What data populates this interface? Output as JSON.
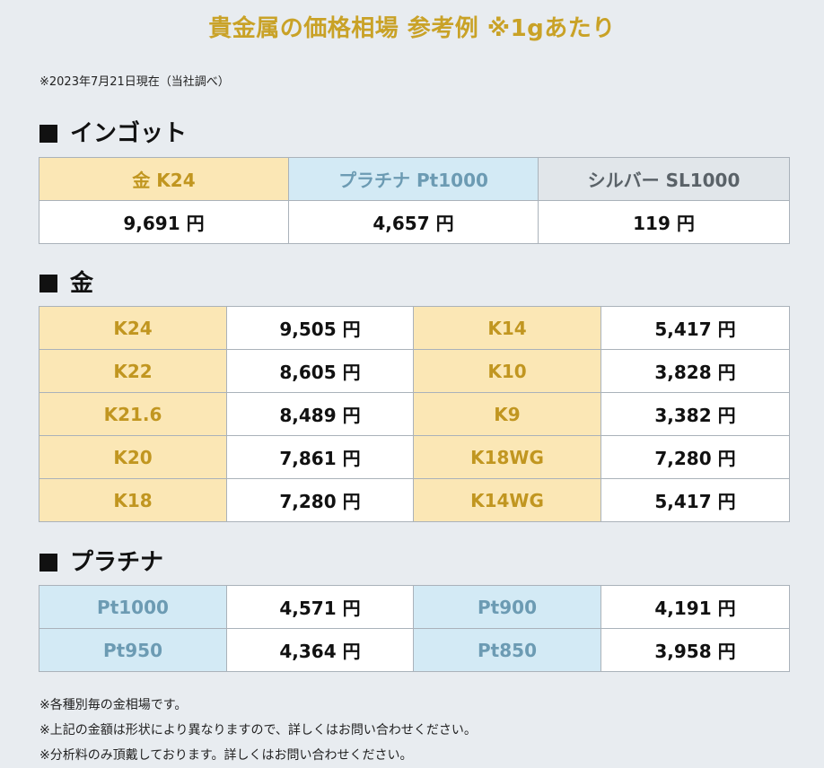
{
  "header": {
    "title": "貴金属の価格相場 参考例 ※1gあたり",
    "date_note": "※2023年7月21日現在（当社調べ）"
  },
  "sections": {
    "ingot": {
      "heading": "インゴット",
      "headers": [
        "金 K24",
        "プラチナ Pt1000",
        "シルバー SL1000"
      ],
      "values": [
        "9,691 円",
        "4,657 円",
        "119 円"
      ]
    },
    "gold": {
      "heading": "金",
      "rows": [
        {
          "grade_a": "K24",
          "price_a": "9,505 円",
          "grade_b": "K14",
          "price_b": "5,417 円"
        },
        {
          "grade_a": "K22",
          "price_a": "8,605 円",
          "grade_b": "K10",
          "price_b": "3,828 円"
        },
        {
          "grade_a": "K21.6",
          "price_a": "8,489 円",
          "grade_b": "K9",
          "price_b": "3,382 円"
        },
        {
          "grade_a": "K20",
          "price_a": "7,861 円",
          "grade_b": "K18WG",
          "price_b": "7,280 円"
        },
        {
          "grade_a": "K18",
          "price_a": "7,280 円",
          "grade_b": "K14WG",
          "price_b": "5,417 円"
        }
      ]
    },
    "platinum": {
      "heading": "プラチナ",
      "rows": [
        {
          "grade_a": "Pt1000",
          "price_a": "4,571 円",
          "grade_b": "Pt900",
          "price_b": "4,191 円"
        },
        {
          "grade_a": "Pt950",
          "price_a": "4,364 円",
          "grade_b": "Pt850",
          "price_b": "3,958 円"
        }
      ]
    }
  },
  "notes": [
    "※各種別毎の金相場です。",
    "※上記の金額は形状により異なりますので、詳しくはお問い合わせください。",
    "※分析料のみ頂戴しております。詳しくはお問い合わせください。"
  ],
  "icons": {
    "section_marker": "black-square-icon"
  },
  "colors": {
    "title": "#c9a227",
    "gold_cell": "#fbe7b5",
    "gold_text": "#c19620",
    "platinum_cell": "#d3eaf5",
    "platinum_text": "#6c9bb3",
    "silver_cell": "#e1e6ea",
    "silver_text": "#5a6268",
    "background": "#e8ecf0"
  }
}
